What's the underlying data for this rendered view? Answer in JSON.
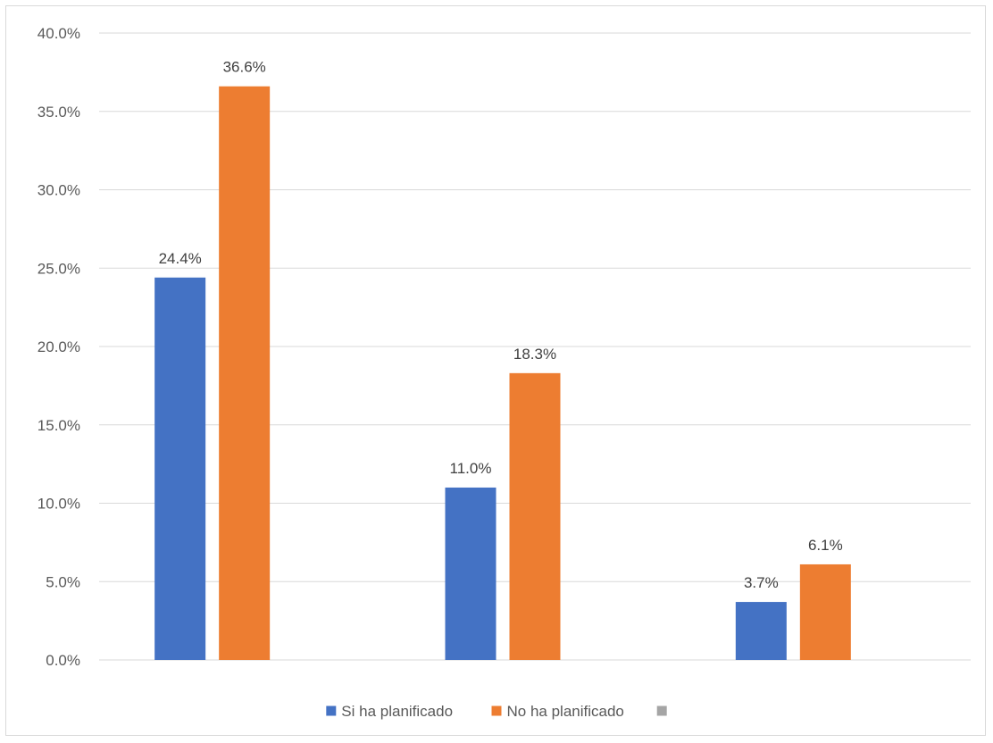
{
  "chart_data": {
    "type": "bar",
    "categories": [
      "",
      "",
      ""
    ],
    "series": [
      {
        "name": "Si ha planificado",
        "color": "#4472c4",
        "values": [
          24.4,
          11.0,
          3.7
        ]
      },
      {
        "name": "No ha planificado",
        "color": "#ed7d31",
        "values": [
          36.6,
          18.3,
          6.1
        ]
      },
      {
        "name": "",
        "color": "#a5a5a5",
        "values": [
          null,
          null,
          null
        ]
      }
    ],
    "data_labels": [
      [
        "24.4%",
        "11.0%",
        "3.7%"
      ],
      [
        "36.6%",
        "18.3%",
        "6.1%"
      ]
    ],
    "ylim": [
      0,
      40
    ],
    "y_ticks": [
      0,
      5,
      10,
      15,
      20,
      25,
      30,
      35,
      40
    ],
    "y_tick_labels": [
      "0.0%",
      "5.0%",
      "10.0%",
      "15.0%",
      "20.0%",
      "25.0%",
      "30.0%",
      "35.0%",
      "40.0%"
    ],
    "grid": true,
    "legend_position": "bottom",
    "title": "",
    "xlabel": "",
    "ylabel": ""
  }
}
